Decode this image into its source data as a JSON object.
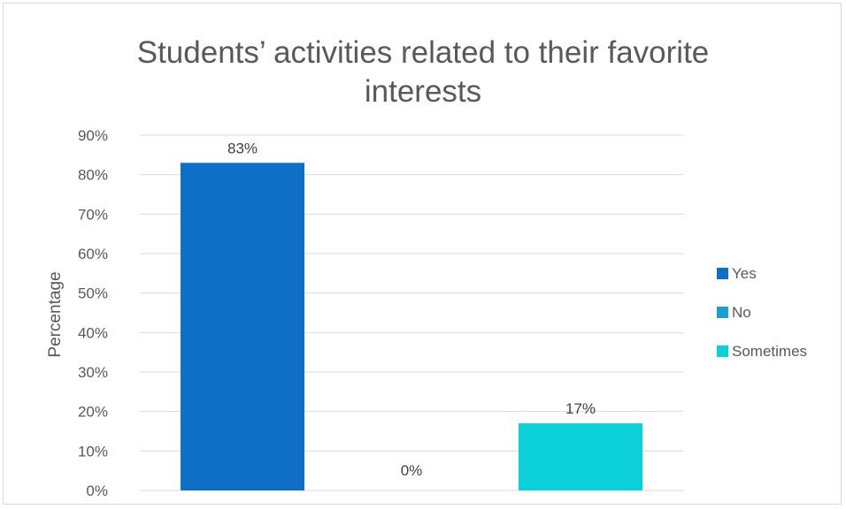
{
  "chart_data": {
    "type": "bar",
    "title_lines": [
      "Students’ activities related to their favorite",
      "interests"
    ],
    "ylabel": "Percentage",
    "xlabel": "",
    "ylim": [
      0,
      90
    ],
    "yticks": [
      "0%",
      "10%",
      "20%",
      "30%",
      "40%",
      "50%",
      "60%",
      "70%",
      "80%",
      "90%"
    ],
    "grid": true,
    "legend_position": "right",
    "series": [
      {
        "name": "Yes",
        "value": 83,
        "label": "83%",
        "color": "#0f6fc6"
      },
      {
        "name": "No",
        "value": 0,
        "label": "0%",
        "color": "#1a9fd4"
      },
      {
        "name": "Sometimes",
        "value": 17,
        "label": "17%",
        "color": "#0bd0d9"
      }
    ]
  }
}
